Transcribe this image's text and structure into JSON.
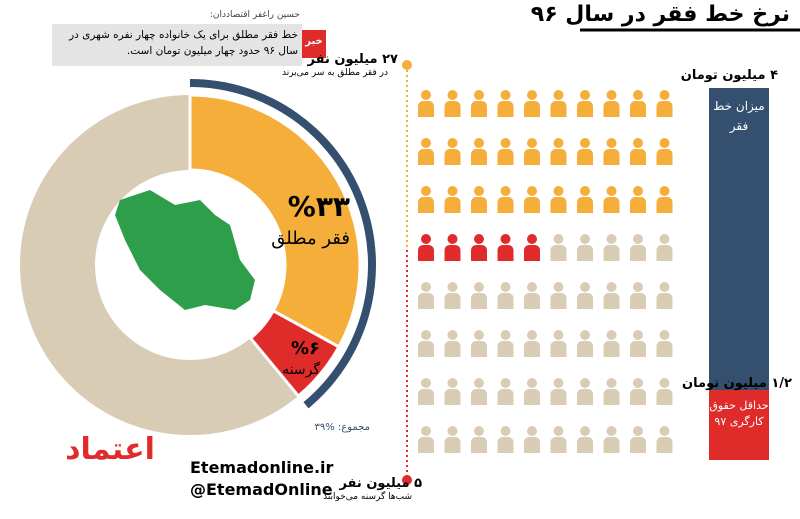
{
  "title": "نرخ خط فقر در سال ۹۶",
  "quote": {
    "author": "حسین راغفر اقتصاددان:",
    "tag": "خبر",
    "text": "خط فقر مطلق برای یک خانواده چهار نفره شهری در سال ۹۶ حدود چهار میلیون تومان است."
  },
  "donut": {
    "segments": [
      {
        "name": "فقر مطلق",
        "value": 33,
        "value_label": "%۳۳",
        "color": "#f5ae3a"
      },
      {
        "name": "گرسنه",
        "value": 6,
        "value_label": "%۶",
        "color": "#e02b2b"
      }
    ],
    "total_label": "مجموع: %۳۹"
  },
  "people": {
    "top_label": "۲۷ میلیون نفر",
    "top_caption": "در فقر مطلق به سر می‌برند",
    "bottom_label": "۵ میلیون نفر",
    "bottom_caption": "شب‌ها گرسنه می‌خوابند"
  },
  "bars": {
    "top_label": "۴ میلیون تومان",
    "top_bar_text": "میزان خط فقر",
    "bottom_label": "۱/۲ میلیون تومان",
    "bottom_bar_text": "حداقل حقوق کارگری ۹۷"
  },
  "footer": {
    "logo": "اعتماد",
    "site": "Etemadonline.ir",
    "handle": "@EtemadOnline"
  }
}
